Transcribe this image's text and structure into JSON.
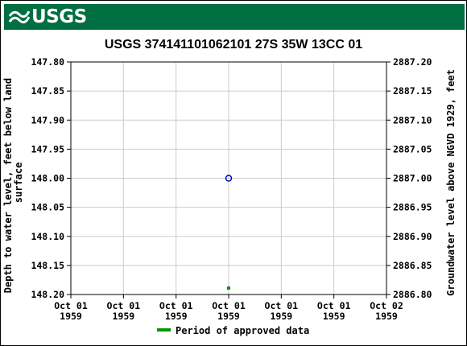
{
  "header": {
    "logo_text": "USGS",
    "logo_color": "#006f41"
  },
  "chart_data": {
    "type": "scatter",
    "title": "USGS 374141101062101 27S 35W 13CC  01",
    "ylabel_left": "Depth to water level, feet below land surface",
    "ylabel_right": "Groundwater level above NGVD 1929, feet",
    "ylim_left": [
      148.2,
      147.8
    ],
    "ylim_right": [
      2886.8,
      2887.2
    ],
    "y_ticks_left": [
      "147.80",
      "147.85",
      "147.90",
      "147.95",
      "148.00",
      "148.05",
      "148.10",
      "148.15",
      "148.20"
    ],
    "y_ticks_right": [
      "2887.20",
      "2887.15",
      "2887.10",
      "2887.05",
      "2887.00",
      "2886.95",
      "2886.90",
      "2886.85",
      "2886.80"
    ],
    "x_ticks": [
      [
        "Oct 01",
        "1959"
      ],
      [
        "Oct 01",
        "1959"
      ],
      [
        "Oct 01",
        "1959"
      ],
      [
        "Oct 01",
        "1959"
      ],
      [
        "Oct 01",
        "1959"
      ],
      [
        "Oct 01",
        "1959"
      ],
      [
        "Oct 02",
        "1959"
      ]
    ],
    "grid": true,
    "points": [
      {
        "x": "1959-10-01",
        "depth": 148.0,
        "marker": "open-circle",
        "color": "#0000cc"
      }
    ],
    "approved_periods": [
      {
        "x": "1959-10-01",
        "color": "#009900"
      }
    ],
    "legend": {
      "position": "bottom",
      "entries": [
        {
          "label": "Period of approved data",
          "color": "#009900"
        }
      ]
    }
  }
}
